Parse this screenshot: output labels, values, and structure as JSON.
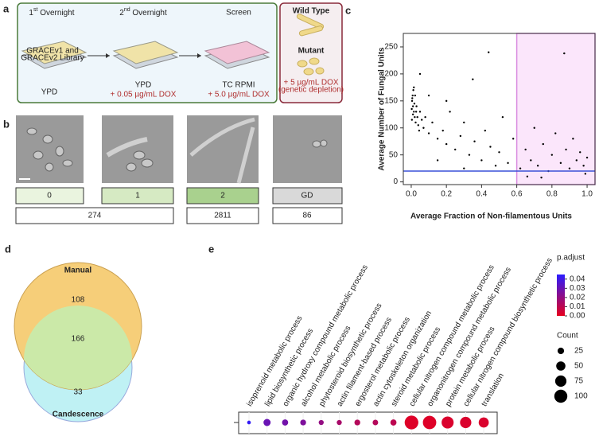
{
  "panel_labels": [
    "a",
    "b",
    "c",
    "d",
    "e"
  ],
  "panel_a": {
    "steps": [
      {
        "num": "1",
        "sup": "st",
        "rest": " Overnight",
        "plate_text": [
          "GRACEv1 and",
          "GRACEv2 Library"
        ],
        "medium": "YPD"
      },
      {
        "num": "2",
        "sup": "nd",
        "rest": " Overnight",
        "medium": "YPD",
        "dox": "+ 0.05 µg/mL DOX"
      },
      {
        "title": "Screen",
        "medium": "TC RPMI",
        "dox": "+ 5.0 µg/mL DOX"
      }
    ],
    "side": {
      "wild_type": "Wild Type",
      "mutant": "Mutant",
      "dox": "+ 5 µg/mL DOX",
      "note": "(genetic depletion)"
    }
  },
  "panel_b": {
    "classes": [
      "0",
      "1",
      "2",
      "GD"
    ],
    "counts": [
      "274",
      "2811",
      "86"
    ]
  },
  "venn": {
    "set_a": "Manual",
    "set_b": "Candescence",
    "only_a": "108",
    "both": "166",
    "only_b": "33"
  },
  "chart_data": [
    {
      "type": "scatter",
      "xlabel": "Average Fraction of Non-filamentous Units",
      "ylabel": "Average Number of Fungal Units",
      "x": [
        0.005,
        0.01,
        0.015,
        0.008,
        0.02,
        0.012,
        0.003,
        0.018,
        0.025,
        0.01,
        0.006,
        0.03,
        0.022,
        0.004,
        0.028,
        0.015,
        0.035,
        0.04,
        0.05,
        0.06,
        0.045,
        0.07,
        0.08,
        0.1,
        0.12,
        0.15,
        0.18,
        0.2,
        0.22,
        0.25,
        0.28,
        0.3,
        0.33,
        0.36,
        0.4,
        0.42,
        0.45,
        0.48,
        0.5,
        0.52,
        0.55,
        0.58,
        0.62,
        0.65,
        0.68,
        0.7,
        0.72,
        0.75,
        0.78,
        0.8,
        0.82,
        0.85,
        0.87,
        0.88,
        0.9,
        0.92,
        0.94,
        0.96,
        0.98,
        1.0,
        0.99,
        0.66,
        0.74,
        0.3,
        0.15,
        0.1,
        0.44,
        0.35,
        0.05,
        0.2
      ],
      "values": [
        150,
        140,
        130,
        160,
        120,
        170,
        135,
        145,
        110,
        125,
        155,
        140,
        160,
        115,
        130,
        175,
        120,
        105,
        130,
        115,
        95,
        100,
        120,
        90,
        110,
        80,
        95,
        70,
        130,
        60,
        85,
        110,
        50,
        75,
        40,
        95,
        65,
        30,
        55,
        120,
        35,
        80,
        25,
        60,
        40,
        100,
        30,
        70,
        20,
        50,
        90,
        35,
        238,
        60,
        25,
        80,
        40,
        55,
        30,
        45,
        15,
        10,
        8,
        25,
        40,
        160,
        240,
        190,
        200,
        150
      ],
      "color": "#000000",
      "xlim": [
        -0.045,
        1.045
      ],
      "ylim": [
        -5,
        275
      ],
      "xticks": [
        {
          "value": 0,
          "label": "0.0"
        },
        0.2,
        0.4,
        0.6,
        0.8,
        {
          "value": 1,
          "label": "1.0"
        }
      ],
      "yticks": [
        0,
        50,
        100,
        150,
        200,
        250
      ],
      "threshold_x": 0.6,
      "threshold_y": 20,
      "threshold_color": "#3a50d8",
      "region_color": "#fbe6fb",
      "region_edge": "#d98ce0"
    },
    {
      "type": "dot",
      "categories": [
        "isoprenoid metabolic process",
        "lipid biosynthetic process",
        "organic hydroxy compound metabolic process",
        "alcohol metabolic process",
        "phytosteroid biosynthetic process",
        "actin filament-based process",
        "ergosterol metabolic process",
        "actin cytoskeleton organization",
        "steroid metabolic process",
        "cellular nitrogen compound metabolic process",
        "organonitrogen compound metabolic process",
        "protein metabolic process",
        "cellular nitrogen compound biosynthetic process",
        "translation"
      ],
      "p_adjust": [
        0.043,
        0.03,
        0.028,
        0.025,
        0.02,
        0.015,
        0.012,
        0.012,
        0.01,
        0.002,
        0.002,
        0.003,
        0.003,
        0.003
      ],
      "count": [
        8,
        30,
        22,
        20,
        15,
        15,
        20,
        18,
        22,
        110,
        105,
        85,
        75,
        60
      ],
      "colorbar": {
        "title": "p.adjust",
        "lim": [
          0,
          0.045
        ],
        "ticks": [
          {
            "value": 0,
            "label": "0.00"
          },
          0.01,
          0.02,
          0.03,
          0.04
        ],
        "colors": [
          "#e6001e",
          "#2b1dff"
        ]
      },
      "size_legend": {
        "title": "Count",
        "values": [
          25,
          50,
          75,
          100
        ]
      }
    }
  ]
}
